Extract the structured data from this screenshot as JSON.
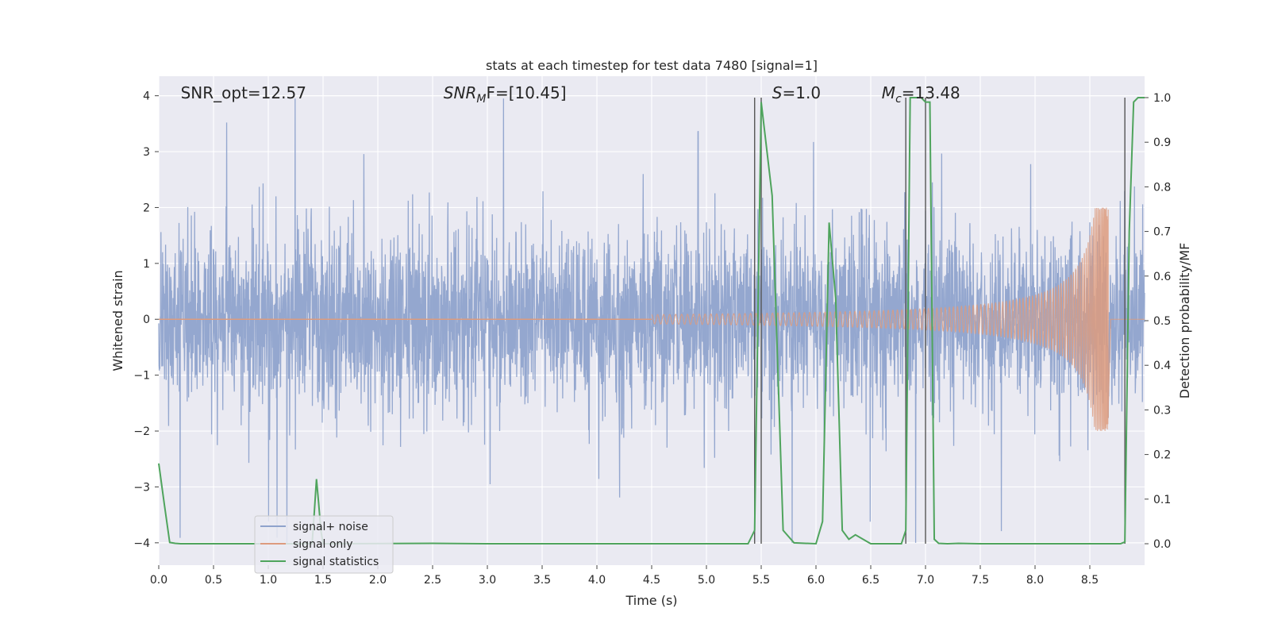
{
  "chart_data": {
    "type": "line",
    "title": "stats at each timestep for test data 7480 [signal=1]",
    "xlabel": "Time (s)",
    "ylabel": "Whitened strain",
    "y2label": "Detection probability/MF",
    "xlim": [
      0.0,
      9.0
    ],
    "ylim": [
      -4.4,
      4.35
    ],
    "y2lim": [
      -0.048,
      1.048
    ],
    "grid": true,
    "legend_location": "lower-left",
    "x_ticks": [
      "0.0",
      "0.5",
      "1.0",
      "1.5",
      "2.0",
      "2.5",
      "3.0",
      "3.5",
      "4.0",
      "4.5",
      "5.0",
      "5.5",
      "6.0",
      "6.5",
      "7.0",
      "7.5",
      "8.0",
      "8.5"
    ],
    "y_ticks": [
      "4",
      "3",
      "2",
      "1",
      "0",
      "−1",
      "−2",
      "−3",
      "−4"
    ],
    "y2_ticks": [
      "1.0",
      "0.9",
      "0.8",
      "0.7",
      "0.6",
      "0.5",
      "0.4",
      "0.3",
      "0.2",
      "0.1",
      "0.0"
    ],
    "annotations": [
      {
        "name": "snr-opt",
        "text": "SNR_opt=12.57",
        "x": 0.2
      },
      {
        "name": "snr-mf",
        "text": "SNR",
        "sub": "M",
        "rest": "F=[10.45]",
        "x": 2.6
      },
      {
        "name": "s-value",
        "text": "S",
        "rest": "=1.0",
        "x": 5.6
      },
      {
        "name": "mc-value",
        "text": "M",
        "sub": "c",
        "rest": "=13.48",
        "x": 6.6
      }
    ],
    "vertical_lines": [
      5.44,
      5.5,
      6.82,
      7.0,
      8.82
    ],
    "series": [
      {
        "name": "signal+ noise",
        "color": "#8fa3cc",
        "kind": "noise",
        "x_range": [
          0.0,
          9.0
        ],
        "approx_std": 0.8,
        "approx_extremes": [
          -4.0,
          3.95
        ]
      },
      {
        "name": "signal only",
        "color": "#dd9b7e",
        "kind": "chirp",
        "x_range": [
          4.5,
          8.67
        ],
        "peak_amplitude": 2.0,
        "merger_time": 8.67
      },
      {
        "name": "signal statistics",
        "color": "#4fa45d",
        "kind": "line",
        "axis": "y2",
        "x": [
          0.0,
          0.05,
          0.1,
          0.15,
          0.2,
          1.35,
          1.4,
          1.42,
          1.44,
          1.46,
          1.48,
          1.5,
          1.55,
          2.5,
          3.0,
          5.38,
          5.44,
          5.5,
          5.6,
          5.7,
          5.8,
          6.0,
          6.06,
          6.12,
          6.18,
          6.24,
          6.3,
          6.36,
          6.5,
          6.78,
          6.82,
          6.86,
          6.9,
          6.96,
          7.0,
          7.04,
          7.08,
          7.12,
          7.2,
          7.3,
          7.5,
          8.78,
          8.82,
          8.86,
          8.9,
          8.94,
          9.0
        ],
        "y": [
          0.18,
          0.09,
          0.003,
          0.001,
          0.0,
          0.0,
          0.0,
          0.07,
          0.145,
          0.09,
          0.03,
          0.0,
          0.0,
          0.001,
          0.0,
          0.0,
          0.03,
          0.99,
          0.78,
          0.03,
          0.002,
          0.0,
          0.05,
          0.72,
          0.55,
          0.03,
          0.01,
          0.02,
          0.0,
          0.0,
          0.03,
          1.0,
          1.0,
          1.0,
          0.99,
          0.99,
          0.01,
          0.001,
          0.0,
          0.001,
          0.0,
          0.0,
          0.004,
          0.7,
          0.99,
          1.0,
          1.0
        ]
      }
    ]
  }
}
